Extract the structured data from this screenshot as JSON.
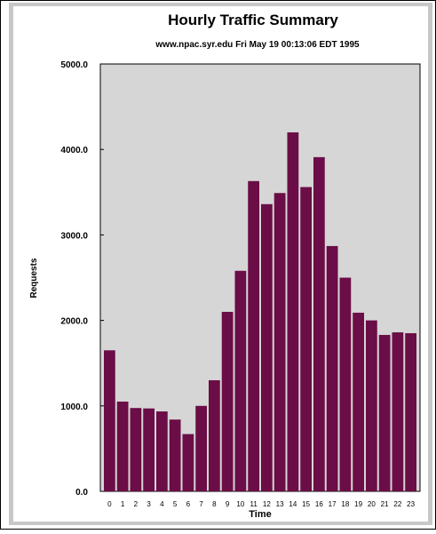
{
  "colors": {
    "page_background": "#ffffff",
    "frame_border": "#000000",
    "frame_inner": "#ffffff",
    "frame_gray": "#c8c8c8",
    "plot_background": "#d6d6d6",
    "bar_fill": "#6b0d46",
    "text": "#000000"
  },
  "chart_data": {
    "type": "bar",
    "title": "Hourly Traffic Summary",
    "subtitle": "www.npac.syr.edu Fri May 19 00:13:06 EDT 1995",
    "xlabel": "Time",
    "ylabel": "Requests",
    "categories": [
      "0",
      "1",
      "2",
      "3",
      "4",
      "5",
      "6",
      "7",
      "8",
      "9",
      "10",
      "11",
      "12",
      "13",
      "14",
      "15",
      "16",
      "17",
      "18",
      "19",
      "20",
      "21",
      "22",
      "23"
    ],
    "values": [
      1650,
      1050,
      975,
      970,
      935,
      840,
      670,
      1000,
      1300,
      2100,
      2580,
      3630,
      3360,
      3490,
      4200,
      3560,
      3910,
      2870,
      2500,
      2090,
      2000,
      1830,
      1860,
      1850
    ],
    "ylim": [
      0,
      5000
    ],
    "yticks": [
      0,
      1000,
      2000,
      3000,
      4000,
      5000
    ],
    "ytick_labels": [
      "0.0",
      "1000.0",
      "2000.0",
      "3000.0",
      "4000.0",
      "5000.0"
    ],
    "grid": false,
    "legend": "none"
  }
}
